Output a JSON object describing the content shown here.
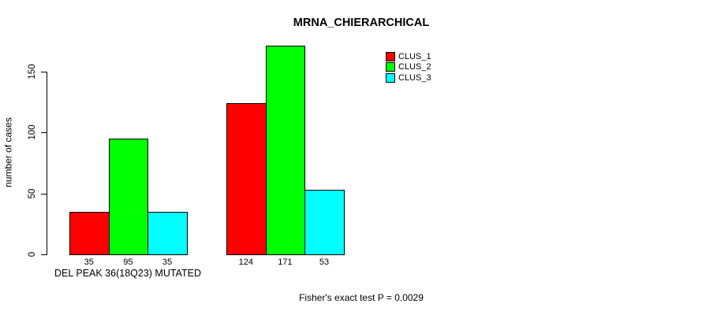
{
  "chart_data": {
    "type": "bar",
    "title": "MRNA_CHIERARCHICAL",
    "ylabel": "number of cases",
    "xlabel": "DEL PEAK 36(18Q23) MUTATED",
    "annotation": "Fisher's exact test P = 0.0029",
    "y_ticks": [
      0,
      50,
      100,
      150
    ],
    "ylim": [
      0,
      171
    ],
    "grid": false,
    "legend_position": "top-right",
    "bar_value_labels_shown": true,
    "series": [
      {
        "name": "CLUS_1",
        "color": "#ff0000"
      },
      {
        "name": "CLUS_2",
        "color": "#00ff00"
      },
      {
        "name": "CLUS_3",
        "color": "#00ffff"
      }
    ],
    "groups": [
      {
        "label": "DEL PEAK 36(18Q23) MUTATED",
        "values": [
          35,
          95,
          35
        ]
      },
      {
        "label": "",
        "values": [
          124,
          171,
          53
        ]
      }
    ]
  }
}
